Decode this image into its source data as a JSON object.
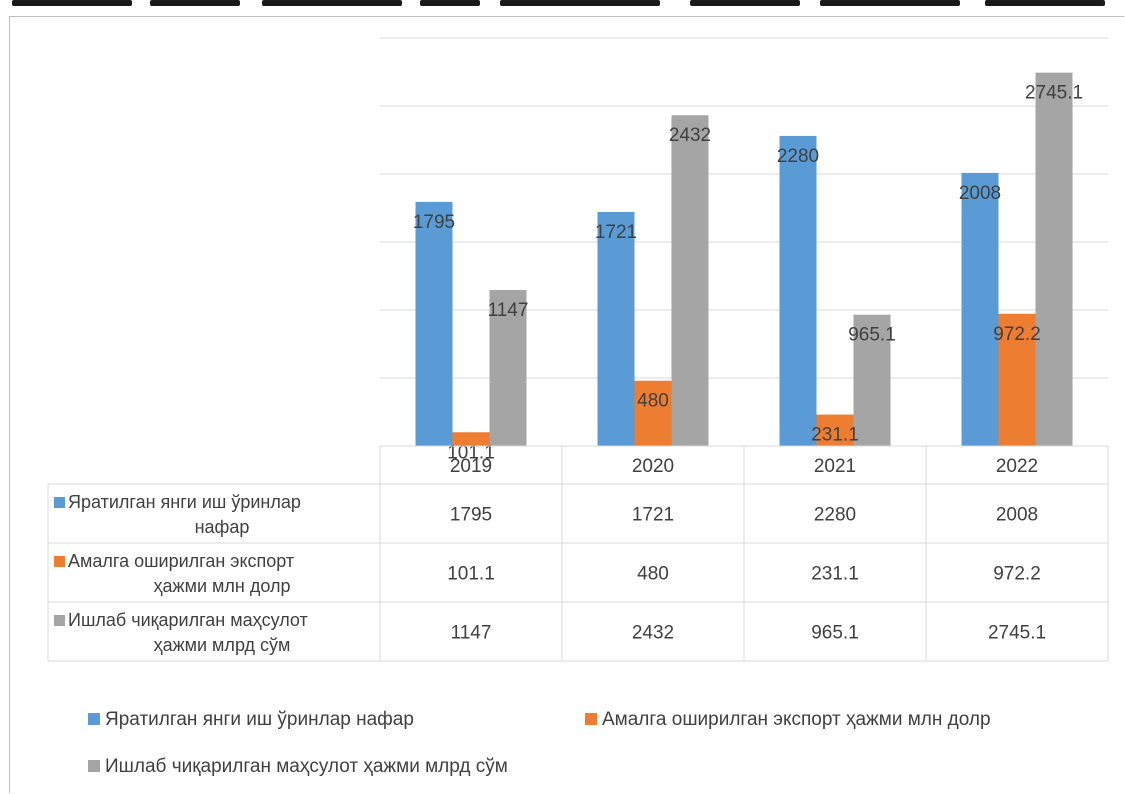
{
  "chart_data": {
    "type": "bar",
    "categories": [
      "2019",
      "2020",
      "2021",
      "2022"
    ],
    "series": [
      {
        "name": "Яратилган янги иш ўринлар нафар",
        "values": [
          1795,
          1721,
          2280,
          2008
        ],
        "labels": [
          "1795",
          "1721",
          "2280",
          "2008"
        ],
        "color": "#5b9bd5"
      },
      {
        "name": "Амалга оширилган экспорт ҳажми млн долр",
        "values": [
          101.1,
          480,
          231.1,
          972.2
        ],
        "labels": [
          "101.1",
          "480",
          "231.1",
          "972.2"
        ],
        "color": "#ed7d31"
      },
      {
        "name": "Ишлаб чиқарилган маҳсулот ҳажми млрд сўм",
        "values": [
          1147,
          2432,
          965.1,
          2745.1
        ],
        "labels": [
          "1147",
          "2432",
          "965.1",
          "2745.1"
        ],
        "color": "#a5a5a5"
      }
    ],
    "table_rows": [
      {
        "label_lines": [
          "Яратилган янги иш ўринлар",
          "нафар"
        ],
        "cells": [
          "1795",
          "1721",
          "2280",
          "2008"
        ]
      },
      {
        "label_lines": [
          "Амалга оширилган экспорт",
          "ҳажми млн долр"
        ],
        "cells": [
          "101.1",
          "480",
          "231.1",
          "972.2"
        ]
      },
      {
        "label_lines": [
          "Ишлаб чиқарилган маҳсулот",
          "ҳажми млрд сўм"
        ],
        "cells": [
          "1147",
          "2432",
          "965.1",
          "2745.1"
        ]
      }
    ],
    "ylim": [
      0,
      3000
    ],
    "gridlines": true,
    "data_table": true,
    "legend_position": "bottom"
  }
}
